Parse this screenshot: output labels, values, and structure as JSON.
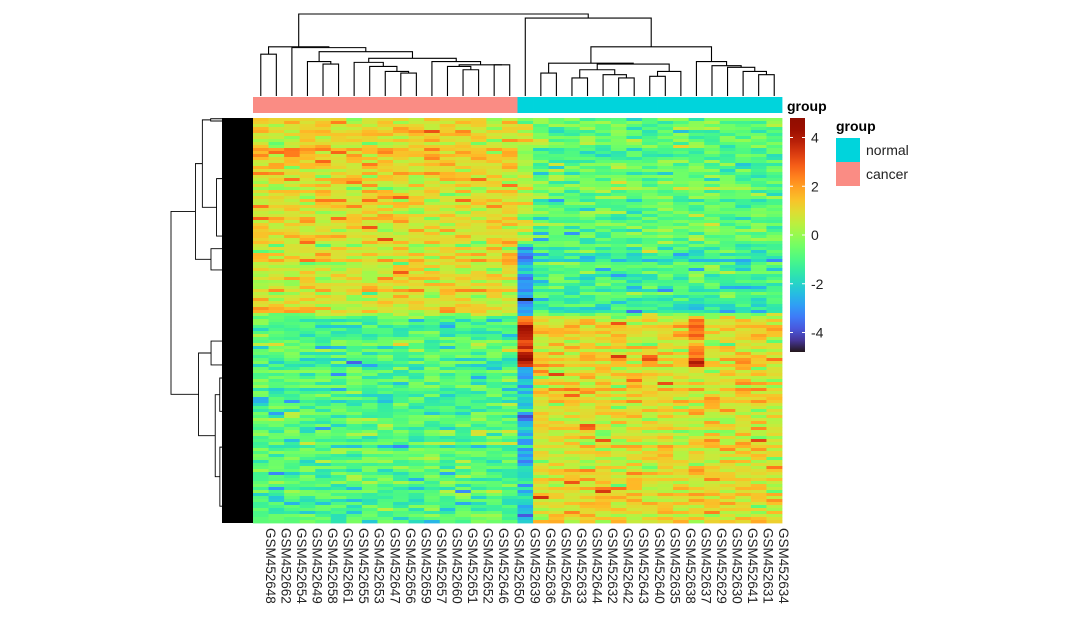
{
  "chart_data": {
    "type": "heatmap",
    "title": "",
    "columns": [
      "GSM452648",
      "GSM452662",
      "GSM452654",
      "GSM452649",
      "GSM452658",
      "GSM452661",
      "GSM452655",
      "GSM452653",
      "GSM452647",
      "GSM452656",
      "GSM452659",
      "GSM452657",
      "GSM452660",
      "GSM452651",
      "GSM452652",
      "GSM452646",
      "GSM452650",
      "GSM452639",
      "GSM452636",
      "GSM452645",
      "GSM452633",
      "GSM452644",
      "GSM452632",
      "GSM452642",
      "GSM452643",
      "GSM452640",
      "GSM452635",
      "GSM452638",
      "GSM452637",
      "GSM452629",
      "GSM452630",
      "GSM452641",
      "GSM452631",
      "GSM452634"
    ],
    "column_groups": [
      "cancer",
      "cancer",
      "cancer",
      "cancer",
      "cancer",
      "cancer",
      "cancer",
      "cancer",
      "cancer",
      "cancer",
      "cancer",
      "cancer",
      "cancer",
      "cancer",
      "cancer",
      "cancer",
      "cancer",
      "normal",
      "normal",
      "normal",
      "normal",
      "normal",
      "normal",
      "normal",
      "normal",
      "normal",
      "normal",
      "normal",
      "normal",
      "normal",
      "normal",
      "normal",
      "normal",
      "normal"
    ],
    "row_blocks": [
      {
        "rows": 42,
        "cancer_mean": 1.0,
        "normal_mean": -0.7,
        "overrides": {
          "GSM452639": 0.3
        }
      },
      {
        "rows": 24,
        "cancer_mean": 0.8,
        "normal_mean": -1.2,
        "overrides": {
          "GSM452639": -2.8
        }
      },
      {
        "rows": 17,
        "cancer_mean": -0.8,
        "normal_mean": 0.9,
        "overrides": {
          "GSM452639": 3.6,
          "GSM452637": 2.4
        }
      },
      {
        "rows": 52,
        "cancer_mean": -1.0,
        "normal_mean": 1.0,
        "overrides": {
          "GSM452639": -2.2
        }
      }
    ],
    "noise_sd": 0.55,
    "color_scale": {
      "min": -4.8,
      "max": 4.8,
      "palette": "turbo",
      "ticks": [
        "4",
        "2",
        "0",
        "-2",
        "-4"
      ],
      "tick_values": [
        4,
        2,
        0,
        -2,
        -4
      ]
    },
    "col_dendrogram": [
      [
        [
          [
            0,
            1,
            51
          ],
          [
            2,
            [
              [
                3,
                [
                  4,
                  5,
                  39
                ],
                42
              ],
              [
                [
                  6,
                  [
                    7,
                    [
                      8,
                      [
                        9,
                        10,
                        28
                      ],
                      30
                    ],
                    36
                  ],
                  41
                ],
                [
                  11,
                  [
                    [
                      12,
                      [
                        13,
                        14,
                        32
                      ],
                      36
                    ],
                    [
                      15,
                      16,
                      38
                    ],
                    38
                  ],
                  42
                ],
                46
              ],
              54
            ],
            59
          ],
          60
        ],
        [
          17,
          [
            [
              [
                18,
                19,
                28
              ],
              [
                [
                  [
                    20,
                    21,
                    22
                  ],
                  [
                    22,
                    [
                      23,
                      24,
                      22
                    ],
                    26
                  ],
                  32
                ],
                [
                  [
                    25,
                    26,
                    24
                  ],
                  27,
                  30
                ],
                39
              ],
              40
            ],
            [
              28,
              [
                29,
                [
                  30,
                  [
                    31,
                    [
                      32,
                      33,
                      26
                    ],
                    30
                  ],
                  35
                ],
                37
              ],
              42
            ],
            60
          ],
          95
        ],
        100
      ]
    ],
    "annotation": {
      "title": "group",
      "legend_title": "group",
      "levels": [
        {
          "name": "normal",
          "color": "#00D4DC"
        },
        {
          "name": "cancer",
          "color": "#FA8C84"
        }
      ]
    },
    "legend_placement": "right"
  }
}
